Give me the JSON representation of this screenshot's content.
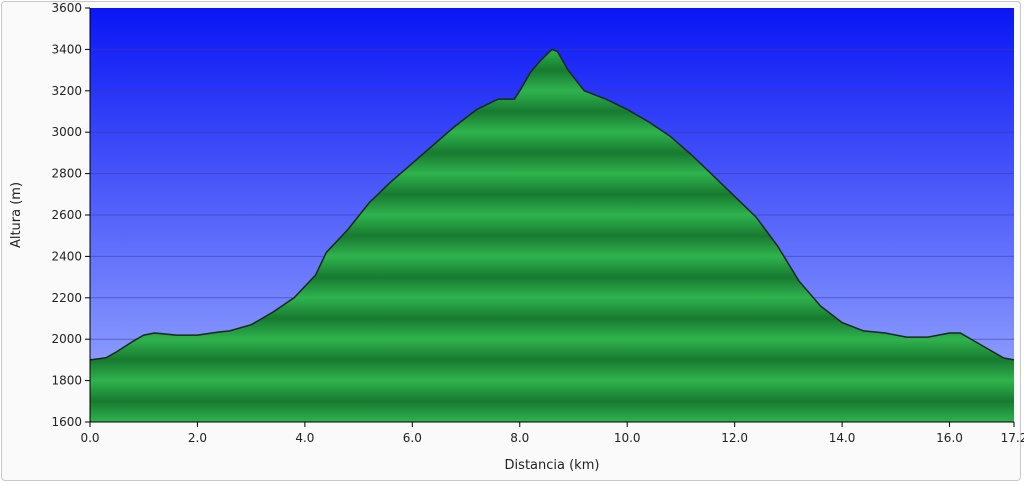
{
  "chart_data": {
    "type": "area",
    "title": "",
    "xlabel": "Distancia (km)",
    "xlabel_parts": [
      "Distancia",
      "(km)"
    ],
    "ylabel": "Altura (m)",
    "xlim": [
      0,
      17.2
    ],
    "ylim": [
      1600,
      3600
    ],
    "x_ticks": [
      0,
      2,
      4,
      6,
      8,
      10,
      12,
      14,
      16,
      17.2
    ],
    "x_tick_labels": [
      "0.0",
      "2.0",
      "4.0",
      "6.0",
      "8.0",
      "10.0",
      "12.0",
      "14.0",
      "16.0",
      "17.2"
    ],
    "y_ticks": [
      1600,
      1800,
      2000,
      2200,
      2400,
      2600,
      2800,
      3000,
      3200,
      3400,
      3600
    ],
    "y_tick_labels": [
      "1600",
      "1800",
      "2000",
      "2200",
      "2400",
      "2600",
      "2800",
      "3000",
      "3200",
      "3400",
      "3600"
    ],
    "grid": true,
    "legend": "none",
    "colors": {
      "sky_top": "#0a16f5",
      "sky_bottom": "#9fb0ff",
      "area_light": "#2fb34e",
      "area_dark": "#177a30",
      "outline": "#1a2a1a"
    },
    "series": [
      {
        "x": [
          0,
          0.3,
          0.5,
          0.8,
          1.0,
          1.2,
          1.4,
          1.6,
          2.0,
          2.4,
          2.6,
          3.0,
          3.4,
          3.8,
          4.2,
          4.4,
          4.8,
          5.2,
          5.6,
          6.0,
          6.4,
          6.8,
          7.2,
          7.6,
          7.9,
          8.0,
          8.2,
          8.4,
          8.6,
          8.7,
          8.9,
          9.2,
          9.6,
          10.0,
          10.4,
          10.8,
          11.2,
          11.6,
          12.0,
          12.4,
          12.8,
          13.2,
          13.6,
          14.0,
          14.4,
          14.8,
          15.2,
          15.6,
          16.0,
          16.2,
          16.6,
          17.0,
          17.2
        ],
        "y": [
          1900,
          1910,
          1940,
          1990,
          2020,
          2030,
          2025,
          2020,
          2020,
          2035,
          2040,
          2070,
          2130,
          2200,
          2310,
          2420,
          2530,
          2660,
          2760,
          2850,
          2940,
          3030,
          3110,
          3160,
          3160,
          3200,
          3290,
          3350,
          3400,
          3390,
          3300,
          3200,
          3160,
          3110,
          3050,
          2980,
          2890,
          2790,
          2690,
          2590,
          2450,
          2280,
          2160,
          2080,
          2040,
          2030,
          2010,
          2010,
          2030,
          2030,
          1970,
          1910,
          1900
        ]
      }
    ]
  }
}
